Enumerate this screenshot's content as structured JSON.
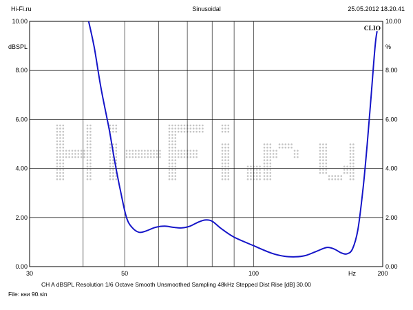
{
  "header": {
    "left": "Hi-Fi.ru",
    "center": "Sinusoidal",
    "right": "25.05.2012 18.20.41"
  },
  "brand": "CLIO",
  "watermark": "Hi-Fi.ru",
  "footer": {
    "settings": "CH A   dBSPL   Resolution 1/6 Octave   Smooth Unsmoothed   Sampling 48kHz   Stepped   Dist Rise [dB] 30.00",
    "file": "File: кни 90.sin"
  },
  "colors": {
    "curve": "#1515c8",
    "grid": "#000000",
    "watermark": "#c4c4c4"
  },
  "chart_data": {
    "type": "line",
    "x_scale": "log",
    "xlim": [
      30,
      200
    ],
    "ylim": [
      0,
      10
    ],
    "x_ticks": [
      {
        "value": 30,
        "label": "30"
      },
      {
        "value": 50,
        "label": "50"
      },
      {
        "value": 100,
        "label": "100"
      },
      {
        "value": 200,
        "label": "200"
      }
    ],
    "x_unit_label": "Hz",
    "x_grid": [
      30,
      40,
      50,
      60,
      70,
      80,
      90,
      100,
      200
    ],
    "y_ticks": [
      0,
      2,
      4,
      6,
      8,
      10
    ],
    "y_tick_labels": [
      "0.00",
      "2.00",
      "4.00",
      "6.00",
      "8.00",
      "10.00"
    ],
    "ylabel_left": "dBSPL",
    "ylabel_right": "%",
    "grid": true,
    "series": [
      {
        "color": "#1515c8",
        "points": [
          [
            41.2,
            10.0
          ],
          [
            42.5,
            8.9
          ],
          [
            44.0,
            7.3
          ],
          [
            46.0,
            5.6
          ],
          [
            47.5,
            4.2
          ],
          [
            49.0,
            3.0
          ],
          [
            50.5,
            2.0
          ],
          [
            52.0,
            1.6
          ],
          [
            54.0,
            1.4
          ],
          [
            56.0,
            1.45
          ],
          [
            59.0,
            1.6
          ],
          [
            62.0,
            1.65
          ],
          [
            65.0,
            1.6
          ],
          [
            68.0,
            1.58
          ],
          [
            71.0,
            1.65
          ],
          [
            74.0,
            1.8
          ],
          [
            77.0,
            1.9
          ],
          [
            80.0,
            1.85
          ],
          [
            84.0,
            1.55
          ],
          [
            90.0,
            1.2
          ],
          [
            100.0,
            0.85
          ],
          [
            110.0,
            0.55
          ],
          [
            118.0,
            0.42
          ],
          [
            125.0,
            0.4
          ],
          [
            132.0,
            0.45
          ],
          [
            140.0,
            0.62
          ],
          [
            148.0,
            0.78
          ],
          [
            154.0,
            0.72
          ],
          [
            160.0,
            0.56
          ],
          [
            165.0,
            0.52
          ],
          [
            170.0,
            0.72
          ],
          [
            175.0,
            1.5
          ],
          [
            180.0,
            3.2
          ],
          [
            184.0,
            5.0
          ],
          [
            188.0,
            7.0
          ],
          [
            192.0,
            9.0
          ],
          [
            194.0,
            9.6
          ]
        ]
      }
    ]
  }
}
